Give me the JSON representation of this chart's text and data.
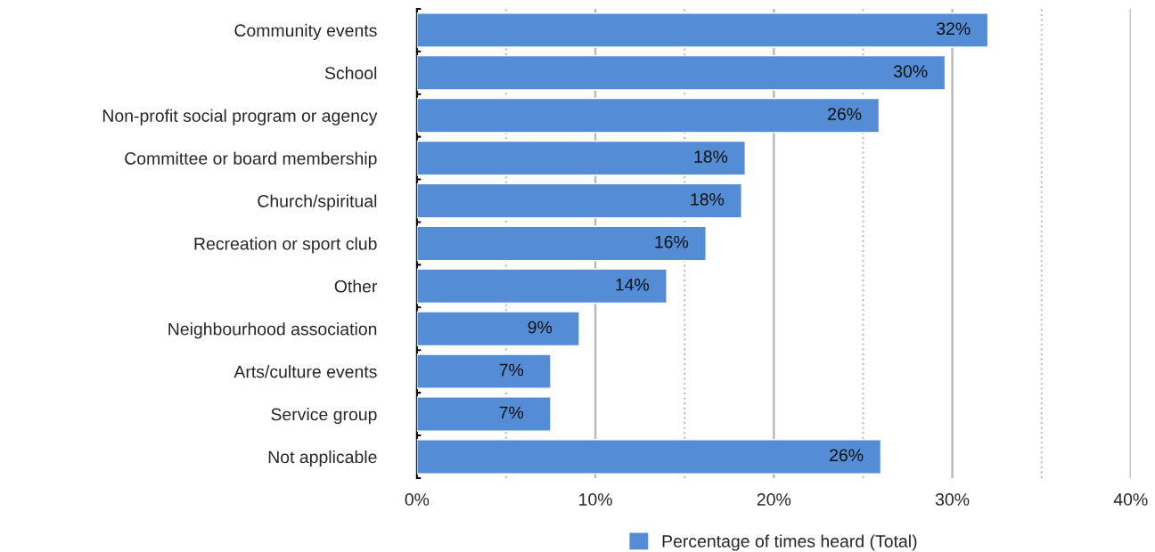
{
  "chart_data": {
    "type": "bar",
    "orientation": "horizontal",
    "categories": [
      "Community events",
      "School",
      "Non-profit social program or agency",
      "Committee or board membership",
      "Church/spiritual",
      "Recreation or sport club",
      "Other",
      "Neighbourhood association",
      "Arts/culture events",
      "Service group",
      "Not applicable"
    ],
    "series": [
      {
        "name": "Percentage of times heard (Total)",
        "color": "#548dd6",
        "values": [
          32.0,
          29.6,
          25.9,
          18.4,
          18.2,
          16.2,
          14.0,
          9.1,
          7.5,
          7.5,
          26.0
        ],
        "value_labels": [
          "32%",
          "30%",
          "26%",
          "18%",
          "18%",
          "16%",
          "14%",
          "9%",
          "7%",
          "7%",
          "26%"
        ]
      }
    ],
    "xlim": [
      0,
      40
    ],
    "xticks": [
      {
        "value": 0,
        "label": "0%"
      },
      {
        "value": 5,
        "label": null
      },
      {
        "value": 10,
        "label": "10%"
      },
      {
        "value": 15,
        "label": null
      },
      {
        "value": 20,
        "label": "20%"
      },
      {
        "value": 25,
        "label": null
      },
      {
        "value": 30,
        "label": "30%"
      },
      {
        "value": 35,
        "label": null
      },
      {
        "value": 40,
        "label": "40%"
      }
    ],
    "grid": "x",
    "legend": "bottom"
  }
}
